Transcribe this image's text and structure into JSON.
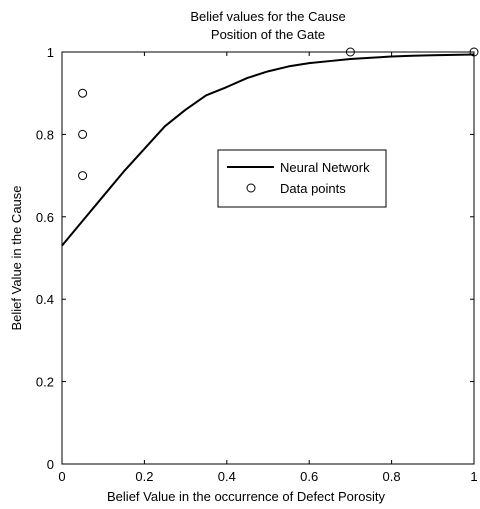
{
  "chart_data": {
    "type": "line",
    "title_lines": [
      "Belief values for the Cause",
      "Position of the Gate"
    ],
    "xlabel": "Belief Value in the occurrence of Defect Porosity",
    "ylabel": "Belief Value in the Cause",
    "xlim": [
      0,
      1
    ],
    "ylim": [
      0,
      1
    ],
    "xticks": [
      0,
      0.2,
      0.4,
      0.6,
      0.8,
      1
    ],
    "yticks": [
      0,
      0.2,
      0.4,
      0.6,
      0.8,
      1
    ],
    "xtick_labels": [
      "0",
      "0.2",
      "0.4",
      "0.6",
      "0.8",
      "1"
    ],
    "ytick_labels": [
      "0",
      "0.2",
      "0.4",
      "0.6",
      "0.8",
      "1"
    ],
    "grid": false,
    "legend_placement": "center-right",
    "series": [
      {
        "name": "Neural Network",
        "style": "solid-line",
        "color": "#000000",
        "x": [
          0,
          0.05,
          0.1,
          0.15,
          0.2,
          0.25,
          0.3,
          0.35,
          0.4,
          0.45,
          0.5,
          0.55,
          0.6,
          0.65,
          0.7,
          0.75,
          0.8,
          0.85,
          0.9,
          0.95,
          1.0
        ],
        "y": [
          0.53,
          0.59,
          0.65,
          0.71,
          0.765,
          0.82,
          0.86,
          0.895,
          0.915,
          0.937,
          0.953,
          0.965,
          0.973,
          0.978,
          0.983,
          0.986,
          0.989,
          0.991,
          0.992,
          0.993,
          0.994
        ]
      },
      {
        "name": "Data points",
        "style": "open-circle",
        "color": "#000000",
        "x": [
          0.05,
          0.05,
          0.05,
          0.7,
          1.0
        ],
        "y": [
          0.9,
          0.8,
          0.7,
          1.0,
          1.0
        ]
      }
    ]
  }
}
